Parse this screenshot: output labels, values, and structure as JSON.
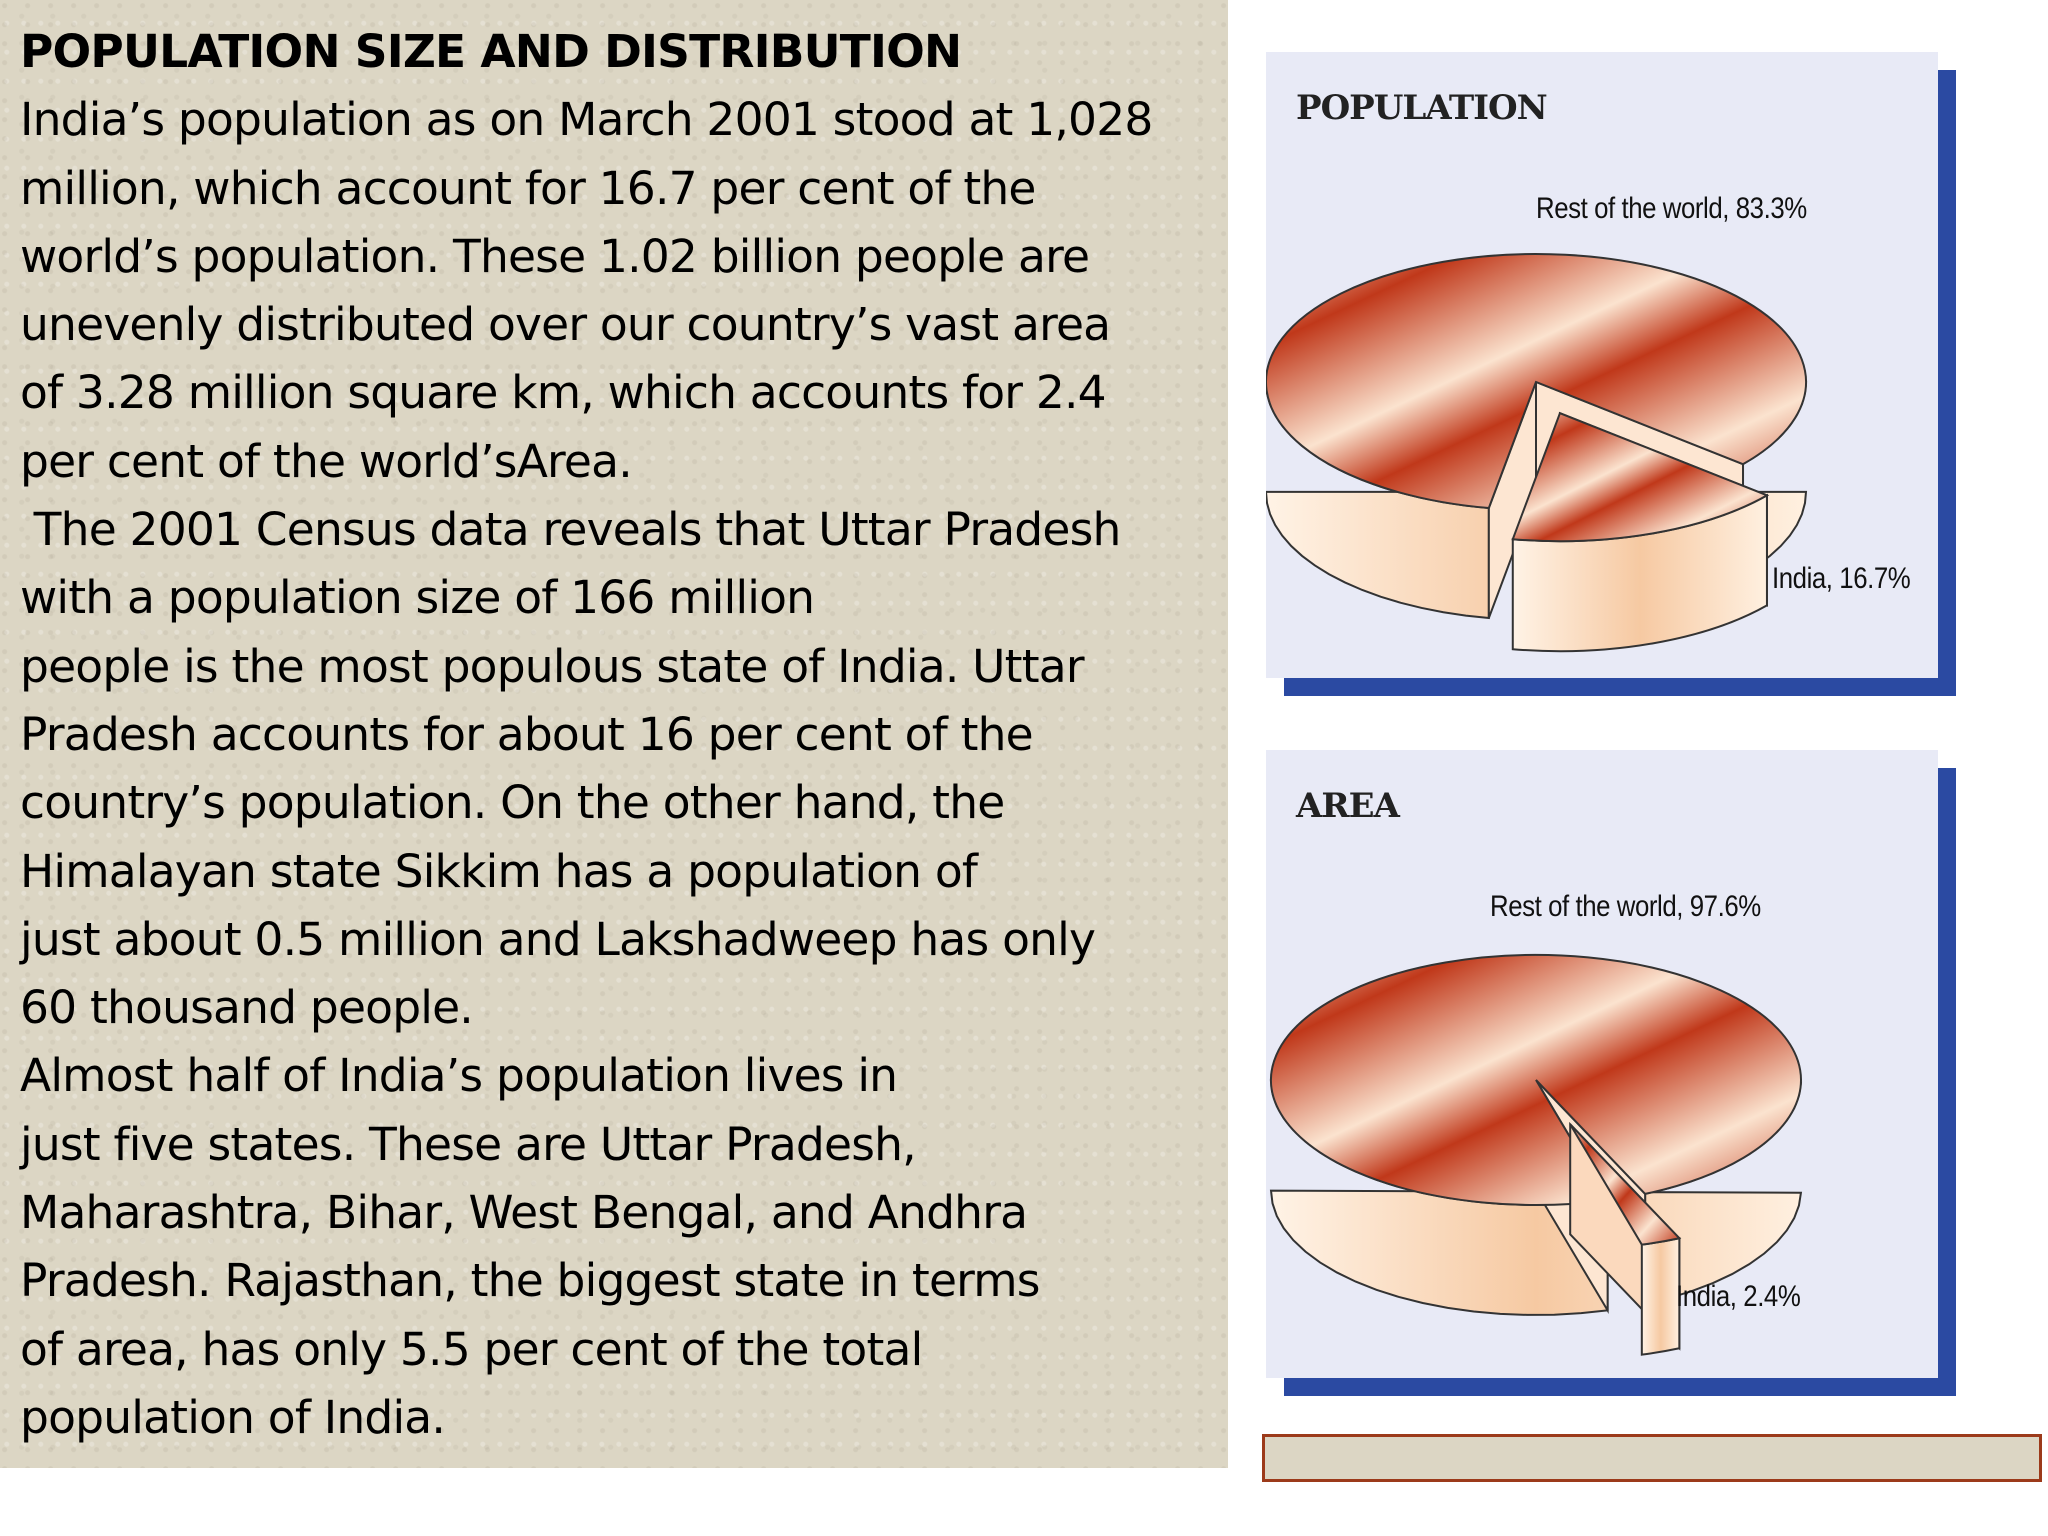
{
  "text": {
    "title": "POPULATION SIZE AND DISTRIBUTION",
    "lines": [
      "India’s population as on March 2001 stood at 1,028",
      "million, which account for 16.7 per cent of the",
      "world’s population. These 1.02 billion people are",
      "unevenly distributed over our country’s vast area",
      "of 3.28 million square km, which accounts for 2.4",
      "per cent of the world’sArea.",
      " The 2001 Census data reveals that Uttar Pradesh",
      "with a population size of 166 million",
      "people is the most populous state of India. Uttar",
      "Pradesh accounts for about 16 per cent of the",
      "country’s population. On the other hand, the",
      "Himalayan state Sikkim has a population of",
      "just about 0.5 million and Lakshadweep has only",
      "60 thousand people.",
      "Almost half of India’s population lives in",
      "just five states. These are Uttar Pradesh,",
      "Maharashtra, Bihar, West Bengal, and Andhra",
      "Pradesh. Rajasthan, the biggest state in terms",
      "of area, has only 5.5 per cent of the total",
      "population of India."
    ]
  },
  "charts": {
    "population": {
      "title": "POPULATION",
      "rest_label": "Rest of the world, 83.3%",
      "india_label": "India, 16.7%"
    },
    "area": {
      "title": "AREA",
      "rest_label": "Rest of the world, 97.6%",
      "india_label": "India, 2.4%"
    }
  },
  "chart_data": [
    {
      "type": "pie",
      "title": "POPULATION",
      "categories": [
        "Rest of the world",
        "India"
      ],
      "values": [
        83.3,
        16.7
      ]
    },
    {
      "type": "pie",
      "title": "AREA",
      "categories": [
        "Rest of the world",
        "India"
      ],
      "values": [
        97.6,
        2.4
      ]
    }
  ],
  "colors": {
    "panel_bg": "#dcd6c4",
    "card_bg": "#e8eaf6",
    "card_shadow": "#2b4aa2",
    "pie_dark": "#c0381a",
    "pie_light": "#fbe3cf",
    "frame_border": "#9c3a1a"
  }
}
